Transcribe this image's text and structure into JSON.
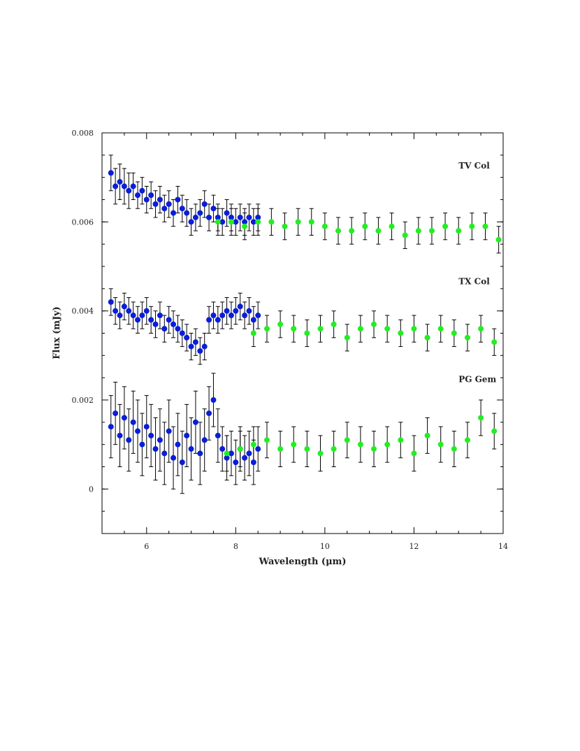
{
  "chart_data": {
    "type": "scatter",
    "title": "",
    "xlabel": "Wavelength (μm)",
    "ylabel": "Flux (mJy)",
    "xlim": [
      5.0,
      14.0
    ],
    "ylim": [
      -0.001,
      0.008
    ],
    "x_ticks": [
      6,
      8,
      10,
      12,
      14
    ],
    "x_tick_labels": [
      "6",
      "8",
      "10",
      "12",
      "14"
    ],
    "y_ticks": [
      0,
      0.002,
      0.004,
      0.006,
      0.008
    ],
    "y_tick_labels": [
      "0",
      "0.002",
      "0.004",
      "0.006",
      "0.008"
    ],
    "grid": false,
    "colors": {
      "short_wavelength": "#0a1ed8",
      "long_wavelength": "#22ee22",
      "axes": "#000000"
    },
    "series": [
      {
        "group": "TV Col",
        "segment": "short",
        "color": "#0a1ed8",
        "x": [
          5.2,
          5.3,
          5.4,
          5.5,
          5.6,
          5.7,
          5.8,
          5.9,
          6.0,
          6.1,
          6.2,
          6.3,
          6.4,
          6.5,
          6.6,
          6.7,
          6.8,
          6.9,
          7.0,
          7.1,
          7.2,
          7.3,
          7.4,
          7.5,
          7.6,
          7.7,
          7.8,
          7.9,
          8.0,
          8.1,
          8.2,
          8.3,
          8.4,
          8.5
        ],
        "y": [
          0.0071,
          0.0068,
          0.0069,
          0.0068,
          0.0067,
          0.0068,
          0.0066,
          0.0067,
          0.0065,
          0.0066,
          0.0064,
          0.0065,
          0.0063,
          0.0064,
          0.0062,
          0.0065,
          0.0063,
          0.0062,
          0.006,
          0.0061,
          0.0062,
          0.0064,
          0.0061,
          0.0063,
          0.0061,
          0.006,
          0.0062,
          0.0061,
          0.006,
          0.0061,
          0.006,
          0.0061,
          0.006,
          0.0061
        ],
        "err": [
          0.0004,
          0.0004,
          0.0004,
          0.0004,
          0.0004,
          0.0003,
          0.0003,
          0.0003,
          0.0003,
          0.0003,
          0.0003,
          0.0003,
          0.0003,
          0.0003,
          0.0003,
          0.0003,
          0.0003,
          0.0003,
          0.0003,
          0.0003,
          0.0003,
          0.0003,
          0.0003,
          0.0003,
          0.0003,
          0.0003,
          0.0003,
          0.0003,
          0.0003,
          0.0003,
          0.0003,
          0.0003,
          0.0003,
          0.0003
        ]
      },
      {
        "group": "TV Col",
        "segment": "long",
        "color": "#22ee22",
        "x": [
          7.6,
          7.9,
          8.2,
          8.5,
          8.8,
          9.1,
          9.4,
          9.7,
          10.0,
          10.3,
          10.6,
          10.9,
          11.2,
          11.5,
          11.8,
          12.1,
          12.4,
          12.7,
          13.0,
          13.3,
          13.6,
          13.9
        ],
        "y": [
          0.006,
          0.006,
          0.0059,
          0.006,
          0.006,
          0.0059,
          0.006,
          0.006,
          0.0059,
          0.0058,
          0.0058,
          0.0059,
          0.0058,
          0.0059,
          0.0057,
          0.0058,
          0.0058,
          0.0059,
          0.0058,
          0.0059,
          0.0059,
          0.0056
        ],
        "err": [
          0.0003,
          0.0003,
          0.0003,
          0.0003,
          0.0003,
          0.0003,
          0.0003,
          0.0003,
          0.0003,
          0.0003,
          0.0003,
          0.0003,
          0.0003,
          0.0003,
          0.0003,
          0.0003,
          0.0003,
          0.0003,
          0.0003,
          0.0003,
          0.0003,
          0.0003
        ]
      },
      {
        "group": "TX Col",
        "segment": "short",
        "color": "#0a1ed8",
        "x": [
          5.2,
          5.3,
          5.4,
          5.5,
          5.6,
          5.7,
          5.8,
          5.9,
          6.0,
          6.1,
          6.2,
          6.3,
          6.4,
          6.5,
          6.6,
          6.7,
          6.8,
          6.9,
          7.0,
          7.1,
          7.2,
          7.3,
          7.4,
          7.5,
          7.6,
          7.7,
          7.8,
          7.9,
          8.0,
          8.1,
          8.2,
          8.3,
          8.4,
          8.5
        ],
        "y": [
          0.0042,
          0.004,
          0.0039,
          0.0041,
          0.004,
          0.0039,
          0.0038,
          0.0039,
          0.004,
          0.0038,
          0.0037,
          0.0039,
          0.0036,
          0.0038,
          0.0037,
          0.0036,
          0.0035,
          0.0034,
          0.0032,
          0.0033,
          0.0031,
          0.0032,
          0.0038,
          0.0039,
          0.0038,
          0.0039,
          0.004,
          0.0039,
          0.004,
          0.0041,
          0.0039,
          0.004,
          0.0038,
          0.0039
        ],
        "err": [
          0.0003,
          0.0003,
          0.0003,
          0.0003,
          0.0003,
          0.0003,
          0.0003,
          0.0003,
          0.0003,
          0.0003,
          0.0003,
          0.0003,
          0.0003,
          0.0003,
          0.0003,
          0.0003,
          0.0003,
          0.0003,
          0.0003,
          0.0003,
          0.0003,
          0.0003,
          0.0003,
          0.0003,
          0.0003,
          0.0003,
          0.0003,
          0.0003,
          0.0003,
          0.0003,
          0.0003,
          0.0003,
          0.0003,
          0.0003
        ]
      },
      {
        "group": "TX Col",
        "segment": "long",
        "color": "#22ee22",
        "x": [
          8.4,
          8.7,
          9.0,
          9.3,
          9.6,
          9.9,
          10.2,
          10.5,
          10.8,
          11.1,
          11.4,
          11.7,
          12.0,
          12.3,
          12.6,
          12.9,
          13.2,
          13.5,
          13.8
        ],
        "y": [
          0.0035,
          0.0036,
          0.0037,
          0.0036,
          0.0035,
          0.0036,
          0.0037,
          0.0034,
          0.0036,
          0.0037,
          0.0036,
          0.0035,
          0.0036,
          0.0034,
          0.0036,
          0.0035,
          0.0034,
          0.0036,
          0.0033
        ],
        "err": [
          0.0003,
          0.0003,
          0.0003,
          0.0003,
          0.0003,
          0.0003,
          0.0003,
          0.0003,
          0.0003,
          0.0003,
          0.0003,
          0.0003,
          0.0003,
          0.0003,
          0.0003,
          0.0003,
          0.0003,
          0.0003,
          0.0003
        ]
      },
      {
        "group": "PG Gem",
        "segment": "short",
        "color": "#0a1ed8",
        "x": [
          5.2,
          5.3,
          5.4,
          5.5,
          5.6,
          5.7,
          5.8,
          5.9,
          6.0,
          6.1,
          6.2,
          6.3,
          6.4,
          6.5,
          6.6,
          6.7,
          6.8,
          6.9,
          7.0,
          7.1,
          7.2,
          7.3,
          7.4,
          7.5,
          7.6,
          7.7,
          7.8,
          7.9,
          8.0,
          8.1,
          8.2,
          8.3,
          8.4,
          8.5
        ],
        "y": [
          0.0014,
          0.0017,
          0.0012,
          0.0016,
          0.0011,
          0.0015,
          0.0013,
          0.001,
          0.0014,
          0.0012,
          0.0009,
          0.0011,
          0.0008,
          0.0013,
          0.0007,
          0.001,
          0.0006,
          0.0012,
          0.0009,
          0.0015,
          0.0008,
          0.0011,
          0.0017,
          0.002,
          0.0012,
          0.0009,
          0.0007,
          0.0008,
          0.0006,
          0.0009,
          0.0007,
          0.0008,
          0.0006,
          0.0009
        ],
        "err": [
          0.0007,
          0.0007,
          0.0007,
          0.0007,
          0.0007,
          0.0007,
          0.0007,
          0.0007,
          0.0007,
          0.0007,
          0.0007,
          0.0007,
          0.0007,
          0.0007,
          0.0007,
          0.0007,
          0.0007,
          0.0007,
          0.0007,
          0.0007,
          0.0007,
          0.0007,
          0.0006,
          0.0006,
          0.0006,
          0.0005,
          0.0005,
          0.0005,
          0.0005,
          0.0005,
          0.0005,
          0.0005,
          0.0005,
          0.0005
        ]
      },
      {
        "group": "PG Gem",
        "segment": "long",
        "color": "#22ee22",
        "x": [
          7.8,
          8.1,
          8.4,
          8.7,
          9.0,
          9.3,
          9.6,
          9.9,
          10.2,
          10.5,
          10.8,
          11.1,
          11.4,
          11.7,
          12.0,
          12.3,
          12.6,
          12.9,
          13.2,
          13.5,
          13.8
        ],
        "y": [
          0.0008,
          0.0009,
          0.001,
          0.0011,
          0.0009,
          0.001,
          0.0009,
          0.0008,
          0.0009,
          0.0011,
          0.001,
          0.0009,
          0.001,
          0.0011,
          0.0008,
          0.0012,
          0.001,
          0.0009,
          0.0011,
          0.0016,
          0.0013
        ],
        "err": [
          0.0004,
          0.0004,
          0.0004,
          0.0004,
          0.0004,
          0.0004,
          0.0004,
          0.0004,
          0.0004,
          0.0004,
          0.0004,
          0.0004,
          0.0004,
          0.0004,
          0.0004,
          0.0004,
          0.0004,
          0.0004,
          0.0004,
          0.0004,
          0.0004
        ]
      }
    ],
    "annotations": [
      {
        "text": "TV Col",
        "x": 13.0,
        "y": 0.0072
      },
      {
        "text": "TX Col",
        "x": 13.0,
        "y": 0.0046
      },
      {
        "text": "PG Gem",
        "x": 13.0,
        "y": 0.0024
      }
    ]
  }
}
